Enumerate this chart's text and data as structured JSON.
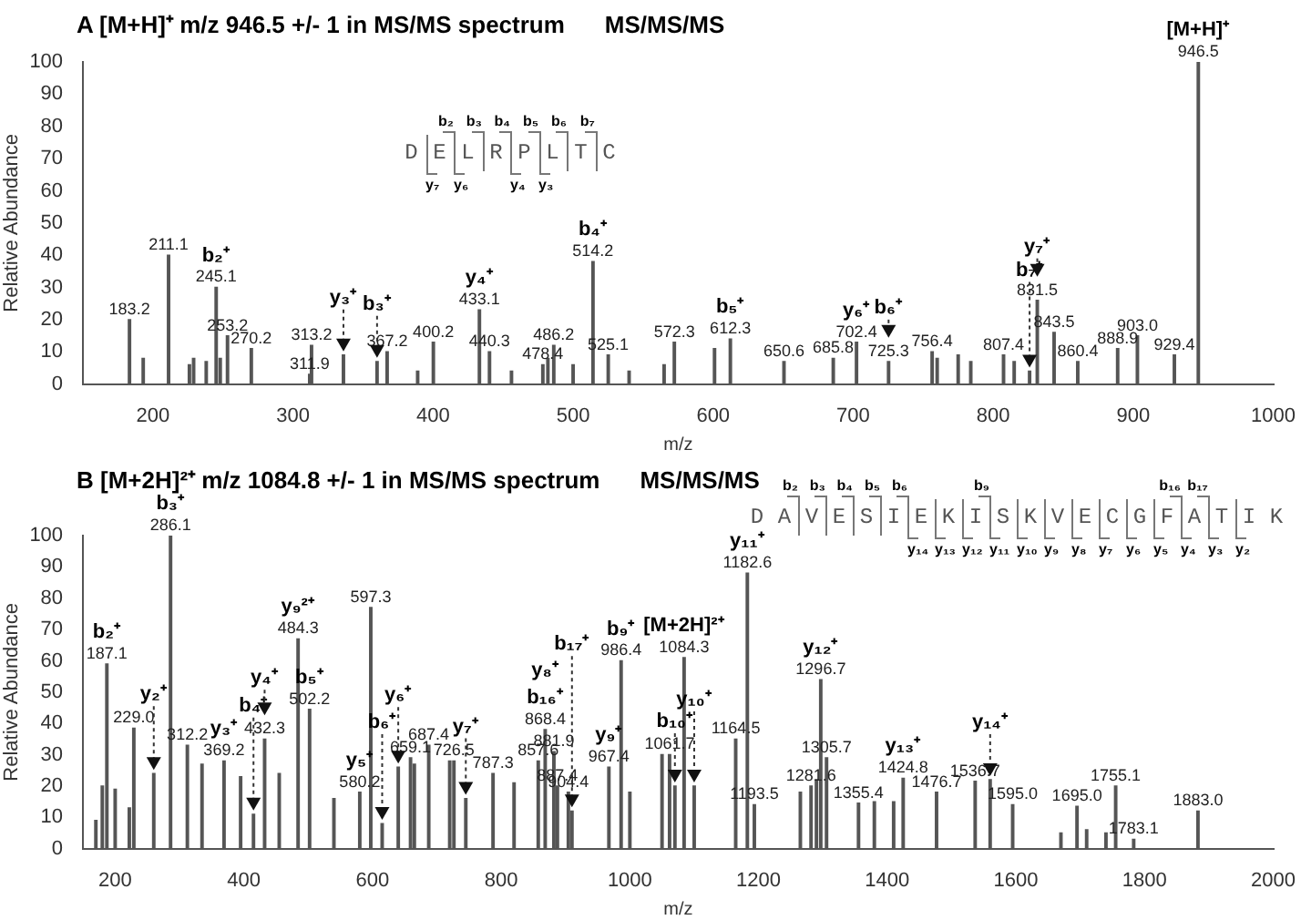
{
  "chart_data": [
    {
      "type": "bar",
      "title": "A [M+H]⁺ m/z 946.5 +/- 1 in MS/MS spectrum",
      "subtitle": "MS/MS/MS",
      "xlabel": "m/z",
      "ylabel": "Relative Abundance",
      "xlim": [
        150,
        1000
      ],
      "xticks": [
        200,
        300,
        400,
        500,
        600,
        700,
        800,
        900,
        1000
      ],
      "ylim": [
        0,
        100
      ],
      "yticks": [
        0,
        10,
        20,
        30,
        40,
        50,
        60,
        70,
        80,
        90,
        100
      ],
      "x": [
        183.2,
        193,
        211.1,
        226,
        229,
        238,
        245.1,
        248,
        253.2,
        270.2,
        311.9,
        313.2,
        336,
        360,
        367.2,
        389,
        400.2,
        433.1,
        440.3,
        456,
        478.4,
        482,
        486.2,
        500,
        514.2,
        525.1,
        540,
        565,
        572.3,
        601,
        612.3,
        650.6,
        685.8,
        702.4,
        725.3,
        756.4,
        760,
        775,
        784,
        807.4,
        815,
        826,
        831.5,
        843.5,
        860.4,
        888.9,
        903.0,
        929.4,
        946.5
      ],
      "series": [
        {
          "color": "#555555",
          "values": [
            20,
            8,
            40,
            6,
            8,
            7,
            30,
            8,
            15,
            11,
            3,
            12,
            9,
            7,
            10,
            4,
            13,
            23,
            10,
            4,
            6,
            8,
            12,
            6,
            38,
            9,
            4,
            6,
            13,
            11,
            14,
            7,
            8,
            13,
            7,
            10,
            8,
            9,
            7,
            9,
            7,
            4,
            26,
            16,
            7,
            11,
            15,
            9,
            100
          ]
        }
      ],
      "annotations": [
        {
          "text": "183.2",
          "x": 183.2,
          "y": 20
        },
        {
          "text": "211.1",
          "x": 211.1,
          "y": 40
        },
        {
          "text": "245.1",
          "x": 245.1,
          "y": 30
        },
        {
          "text": "253.2",
          "x": 253.2,
          "y": 15
        },
        {
          "text": "270.2",
          "x": 270.2,
          "y": 11
        },
        {
          "text": "311.9",
          "x": 311.9,
          "y": 3
        },
        {
          "text": "313.2",
          "x": 313.2,
          "y": 12
        },
        {
          "text": "367.2",
          "x": 367.2,
          "y": 10
        },
        {
          "text": "400.2",
          "x": 400.2,
          "y": 13
        },
        {
          "text": "433.1",
          "x": 433.1,
          "y": 23
        },
        {
          "text": "440.3",
          "x": 440.3,
          "y": 10
        },
        {
          "text": "478.4",
          "x": 478.4,
          "y": 6
        },
        {
          "text": "486.2",
          "x": 486.2,
          "y": 12
        },
        {
          "text": "514.2",
          "x": 514.2,
          "y": 38
        },
        {
          "text": "525.1",
          "x": 525.1,
          "y": 9
        },
        {
          "text": "572.3",
          "x": 572.3,
          "y": 13
        },
        {
          "text": "612.3",
          "x": 612.3,
          "y": 14
        },
        {
          "text": "650.6",
          "x": 650.6,
          "y": 7
        },
        {
          "text": "685.8",
          "x": 685.8,
          "y": 8
        },
        {
          "text": "702.4",
          "x": 702.4,
          "y": 13
        },
        {
          "text": "725.3",
          "x": 725.3,
          "y": 7
        },
        {
          "text": "756.4",
          "x": 756.4,
          "y": 10
        },
        {
          "text": "807.4",
          "x": 807.4,
          "y": 9
        },
        {
          "text": "831.5",
          "x": 831.5,
          "y": 26
        },
        {
          "text": "843.5",
          "x": 843.5,
          "y": 16
        },
        {
          "text": "860.4",
          "x": 860.4,
          "y": 7
        },
        {
          "text": "888.9",
          "x": 888.9,
          "y": 11
        },
        {
          "text": "903.0",
          "x": 903.0,
          "y": 15
        },
        {
          "text": "929.4",
          "x": 929.4,
          "y": 9
        },
        {
          "text": "946.5",
          "x": 946.5,
          "y": 100
        },
        {
          "text": "b₂⁺",
          "x": 245.1,
          "y": 30
        },
        {
          "text": "y₃⁺",
          "x": 336,
          "y": 9
        },
        {
          "text": "b₃⁺",
          "x": 360,
          "y": 7
        },
        {
          "text": "y₄⁺",
          "x": 433.1,
          "y": 23
        },
        {
          "text": "b₄⁺",
          "x": 514.2,
          "y": 38
        },
        {
          "text": "b₅⁺",
          "x": 612.3,
          "y": 14
        },
        {
          "text": "y₆⁺",
          "x": 702.4,
          "y": 13
        },
        {
          "text": "b₆⁺",
          "x": 725.3,
          "y": 7
        },
        {
          "text": "b₇⁺",
          "x": 826,
          "y": 4
        },
        {
          "text": "y₇⁺",
          "x": 831.5,
          "y": 26
        },
        {
          "text": "[M+H]⁺",
          "x": 946.5,
          "y": 100
        },
        "D E L R P L T C",
        " b₂ b₃ b₄ b₅ b₆ b₇",
        "y₇ y₆  y₄ y₃  "
      ]
    },
    {
      "type": "bar",
      "title": "B [M+2H]²⁺ m/z 1084.8 +/- 1 in MS/MS spectrum",
      "subtitle": "MS/MS/MS",
      "xlabel": "m/z",
      "ylabel": "Relative Abundance",
      "xlim": [
        150,
        2000
      ],
      "xticks": [
        200,
        400,
        600,
        800,
        1000,
        1200,
        1400,
        1600,
        1800,
        2000
      ],
      "ylim": [
        0,
        100
      ],
      "yticks": [
        0,
        10,
        20,
        30,
        40,
        50,
        60,
        70,
        80,
        90,
        100
      ],
      "x": [
        170,
        180,
        187.1,
        200,
        222,
        229.0,
        260,
        286.1,
        312.2,
        335,
        369.2,
        395,
        415,
        432.3,
        455,
        484.3,
        502.2,
        540,
        580.2,
        597.3,
        615,
        640,
        659.1,
        665,
        687.4,
        720,
        726.5,
        745,
        787.3,
        820,
        857.6,
        868.4,
        881.9,
        887.4,
        904.4,
        910,
        967.4,
        986.4,
        1000,
        1050,
        1061.7,
        1070,
        1084.3,
        1100,
        1164.5,
        1182.6,
        1193.5,
        1265,
        1281.6,
        1290,
        1296.7,
        1305.7,
        1355.4,
        1380,
        1410,
        1424.8,
        1476.7,
        1536.7,
        1560,
        1595.0,
        1670,
        1695.0,
        1710,
        1740,
        1755.1,
        1783.1,
        1883.0
      ],
      "series": [
        {
          "color": "#555555",
          "values": [
            9,
            20,
            59,
            19,
            13,
            38.5,
            24,
            100,
            33,
            27,
            28,
            23,
            11,
            35,
            24,
            67,
            44.5,
            16,
            18,
            77,
            8,
            26,
            29,
            27,
            33,
            28,
            28,
            16,
            24,
            21,
            28,
            38,
            31,
            20,
            18,
            12,
            26,
            60,
            18,
            30,
            30,
            20,
            61,
            20,
            35,
            88,
            14,
            18,
            20,
            22,
            54,
            29,
            14.5,
            15,
            15,
            22.5,
            18,
            21.5,
            22,
            14,
            5,
            13.5,
            6,
            5,
            20,
            3,
            12
          ]
        }
      ],
      "annotations": [
        {
          "text": "187.1",
          "x": 187.1,
          "y": 59
        },
        {
          "text": "229.0",
          "x": 229.0,
          "y": 38.5
        },
        {
          "text": "286.1",
          "x": 286.1,
          "y": 100
        },
        {
          "text": "312.2",
          "x": 312.2,
          "y": 33
        },
        {
          "text": "369.2",
          "x": 369.2,
          "y": 28
        },
        {
          "text": "432.3",
          "x": 432.3,
          "y": 35
        },
        {
          "text": "484.3",
          "x": 484.3,
          "y": 67
        },
        {
          "text": "502.2",
          "x": 502.2,
          "y": 44.5
        },
        {
          "text": "580.2",
          "x": 580.2,
          "y": 18
        },
        {
          "text": "597.3",
          "x": 597.3,
          "y": 77
        },
        {
          "text": "659.1",
          "x": 659.1,
          "y": 29
        },
        {
          "text": "687.4",
          "x": 687.4,
          "y": 33
        },
        {
          "text": "726.5",
          "x": 726.5,
          "y": 28
        },
        {
          "text": "787.3",
          "x": 787.3,
          "y": 24
        },
        {
          "text": "857.6",
          "x": 857.6,
          "y": 28
        },
        {
          "text": "868.4",
          "x": 868.4,
          "y": 38
        },
        {
          "text": "881.9",
          "x": 881.9,
          "y": 31
        },
        {
          "text": "887.4",
          "x": 887.4,
          "y": 20
        },
        {
          "text": "904.4",
          "x": 904.4,
          "y": 18
        },
        {
          "text": "967.4",
          "x": 967.4,
          "y": 26
        },
        {
          "text": "986.4",
          "x": 986.4,
          "y": 60
        },
        {
          "text": "1061.7",
          "x": 1061.7,
          "y": 30
        },
        {
          "text": "1084.3",
          "x": 1084.3,
          "y": 61
        },
        {
          "text": "1164.5",
          "x": 1164.5,
          "y": 35
        },
        {
          "text": "1182.6",
          "x": 1182.6,
          "y": 88
        },
        {
          "text": "1193.5",
          "x": 1193.5,
          "y": 14
        },
        {
          "text": "1281.6",
          "x": 1281.6,
          "y": 20
        },
        {
          "text": "1296.7",
          "x": 1296.7,
          "y": 54
        },
        {
          "text": "1305.7",
          "x": 1305.7,
          "y": 29
        },
        {
          "text": "1355.4",
          "x": 1355.4,
          "y": 14.5
        },
        {
          "text": "1424.8",
          "x": 1424.8,
          "y": 22.5
        },
        {
          "text": "1476.7",
          "x": 1476.7,
          "y": 18
        },
        {
          "text": "1536.7",
          "x": 1536.7,
          "y": 21.5
        },
        {
          "text": "1595.0",
          "x": 1595.0,
          "y": 14
        },
        {
          "text": "1695.0",
          "x": 1695.0,
          "y": 13.5
        },
        {
          "text": "1755.1",
          "x": 1755.1,
          "y": 20
        },
        {
          "text": "1783.1",
          "x": 1783.1,
          "y": 3
        },
        {
          "text": "1883.0",
          "x": 1883.0,
          "y": 12
        },
        {
          "text": "b₂⁺",
          "x": 187.1,
          "y": 59
        },
        {
          "text": "y₂⁺",
          "x": 260,
          "y": 24
        },
        {
          "text": "b₃⁺",
          "x": 286.1,
          "y": 100
        },
        {
          "text": "y₃⁺",
          "x": 369.2,
          "y": 28
        },
        {
          "text": "b₄⁺",
          "x": 415,
          "y": 11
        },
        {
          "text": "y₄⁺",
          "x": 432.3,
          "y": 35
        },
        {
          "text": "y₉²⁺",
          "x": 484.3,
          "y": 67
        },
        {
          "text": "b₅⁺",
          "x": 502.2,
          "y": 44.5
        },
        {
          "text": "y₅⁺",
          "x": 580.2,
          "y": 18
        },
        {
          "text": "b₆⁺",
          "x": 615,
          "y": 8
        },
        {
          "text": "y₆⁺",
          "x": 640,
          "y": 26
        },
        {
          "text": "y₇⁺",
          "x": 745,
          "y": 16
        },
        {
          "text": "b₁₆⁺",
          "x": 868.4,
          "y": 38
        },
        {
          "text": "y₈⁺",
          "x": 868.4,
          "y": 38
        },
        {
          "text": "b₁₇⁺",
          "x": 910,
          "y": 12
        },
        {
          "text": "b₉⁺",
          "x": 986.4,
          "y": 60
        },
        {
          "text": "y₉⁺",
          "x": 967.4,
          "y": 26
        },
        {
          "text": "b₁₀⁺",
          "x": 1070,
          "y": 20
        },
        {
          "text": "[M+2H]²⁺",
          "x": 1084.3,
          "y": 61
        },
        {
          "text": "y₁₀⁺",
          "x": 1100,
          "y": 20
        },
        {
          "text": "y₁₁⁺",
          "x": 1182.6,
          "y": 88
        },
        {
          "text": "y₁₂⁺",
          "x": 1296.7,
          "y": 54
        },
        {
          "text": "y₁₃⁺",
          "x": 1424.8,
          "y": 22.5
        },
        {
          "text": "y₁₄⁺",
          "x": 1560,
          "y": 22
        },
        "D A V E S I E K I S K V E C G F A T I K",
        " b₂ b₃ b₄ b₅ b₆   b₉       b₁₆ b₁₇  ",
        "     y₁₄ y₁₃ y₁₂ y₁₁ y₁₀ y₉ y₈ y₇ y₆ y₅ y₄ y₃ y₂ "
      ]
    }
  ]
}
